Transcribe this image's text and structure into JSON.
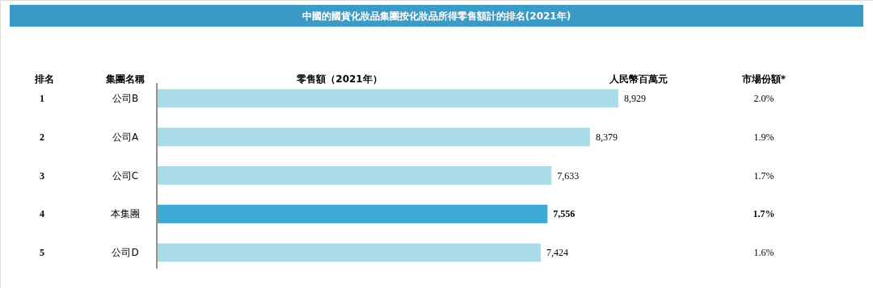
{
  "chart_data": {
    "type": "bar",
    "orientation": "horizontal",
    "title": "中國的國貨化妝品集團按化妝品所得零售額計的排名(2021年)",
    "categories": [
      "公司B",
      "公司A",
      "公司C",
      "本集團",
      "公司D"
    ],
    "values": [
      8929,
      8379,
      7633,
      7556,
      7424
    ],
    "colors": [
      "#a9dce6",
      "#a9dce6",
      "#a9dce6",
      "#3ea9d3",
      "#a9dce6"
    ],
    "value_labels": [
      "8,929",
      "8,379",
      "7,633",
      "7,556",
      "7,424"
    ],
    "annotations": [
      "排名",
      "集團名稱",
      "零售額（2021年）",
      "人民幣百萬元",
      "市場份額*",
      "1",
      "2.0%",
      "2",
      "1.9%",
      "3",
      "1.7%",
      "4",
      "1.7%",
      "5",
      "1.6%"
    ]
  }
}
